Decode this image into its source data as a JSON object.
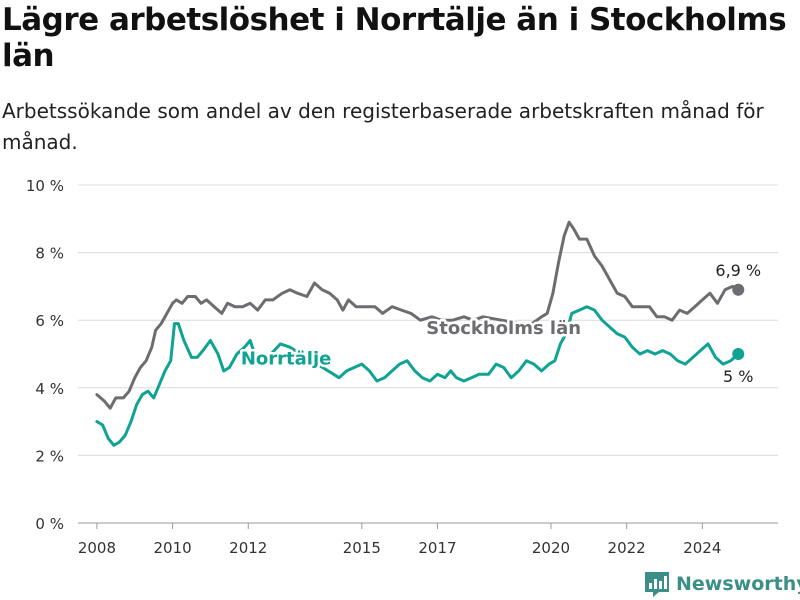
{
  "title": "Lägre arbetslöshet i Norrtälje än i Stockholms län",
  "subtitle": "Arbetssökande som andel av den registerbaserade arbetskraften månad för månad.",
  "brand": {
    "name": "Newsworthy",
    "color": "#3b8f86"
  },
  "chart_data": {
    "type": "line",
    "title": "Lägre arbetslöshet i Norrtälje än i Stockholms län",
    "subtitle": "Arbetssökande som andel av den registerbaserade arbetskraften månad för månad.",
    "xlabel": "",
    "ylabel": "",
    "xlim": [
      2007.5,
      2026.0
    ],
    "ylim": [
      0,
      10
    ],
    "y_ticks": [
      0,
      2,
      4,
      6,
      8,
      10
    ],
    "y_tick_labels": [
      "0 %",
      "2 %",
      "4 %",
      "6 %",
      "8 %",
      "10 %"
    ],
    "x_ticks": [
      2008,
      2010,
      2012,
      2015,
      2017,
      2020,
      2022,
      2024
    ],
    "x_tick_labels": [
      "2008",
      "2010",
      "2012",
      "2015",
      "2017",
      "2020",
      "2022",
      "2024"
    ],
    "grid": "horizontal",
    "series": [
      {
        "name": "Stockholms län",
        "color": "#6d6c70",
        "label_at": [
          2018.75,
          5.8
        ],
        "end_label": "6,9 %",
        "points": [
          [
            2008.0,
            3.8
          ],
          [
            2008.2,
            3.6
          ],
          [
            2008.35,
            3.4
          ],
          [
            2008.5,
            3.7
          ],
          [
            2008.7,
            3.7
          ],
          [
            2008.85,
            3.9
          ],
          [
            2009.0,
            4.3
          ],
          [
            2009.15,
            4.6
          ],
          [
            2009.3,
            4.8
          ],
          [
            2009.45,
            5.2
          ],
          [
            2009.55,
            5.7
          ],
          [
            2009.7,
            5.9
          ],
          [
            2009.85,
            6.2
          ],
          [
            2010.0,
            6.5
          ],
          [
            2010.1,
            6.6
          ],
          [
            2010.25,
            6.5
          ],
          [
            2010.4,
            6.7
          ],
          [
            2010.6,
            6.7
          ],
          [
            2010.75,
            6.5
          ],
          [
            2010.9,
            6.6
          ],
          [
            2011.1,
            6.4
          ],
          [
            2011.3,
            6.2
          ],
          [
            2011.45,
            6.5
          ],
          [
            2011.65,
            6.4
          ],
          [
            2011.85,
            6.4
          ],
          [
            2012.05,
            6.5
          ],
          [
            2012.25,
            6.3
          ],
          [
            2012.45,
            6.6
          ],
          [
            2012.65,
            6.6
          ],
          [
            2012.9,
            6.8
          ],
          [
            2013.1,
            6.9
          ],
          [
            2013.3,
            6.8
          ],
          [
            2013.55,
            6.7
          ],
          [
            2013.75,
            7.1
          ],
          [
            2013.95,
            6.9
          ],
          [
            2014.15,
            6.8
          ],
          [
            2014.35,
            6.6
          ],
          [
            2014.5,
            6.3
          ],
          [
            2014.65,
            6.6
          ],
          [
            2014.85,
            6.4
          ],
          [
            2015.1,
            6.4
          ],
          [
            2015.35,
            6.4
          ],
          [
            2015.55,
            6.2
          ],
          [
            2015.8,
            6.4
          ],
          [
            2016.05,
            6.3
          ],
          [
            2016.3,
            6.2
          ],
          [
            2016.55,
            6.0
          ],
          [
            2016.85,
            6.1
          ],
          [
            2017.1,
            6.0
          ],
          [
            2017.4,
            6.0
          ],
          [
            2017.7,
            6.1
          ],
          [
            2017.95,
            6.0
          ],
          [
            2018.2,
            6.1
          ],
          [
            2019.2,
            5.9
          ],
          [
            2019.5,
            5.9
          ],
          [
            2019.75,
            6.1
          ],
          [
            2019.9,
            6.2
          ],
          [
            2020.05,
            6.8
          ],
          [
            2020.2,
            7.7
          ],
          [
            2020.35,
            8.5
          ],
          [
            2020.48,
            8.9
          ],
          [
            2020.6,
            8.7
          ],
          [
            2020.75,
            8.4
          ],
          [
            2020.95,
            8.4
          ],
          [
            2021.15,
            7.9
          ],
          [
            2021.35,
            7.6
          ],
          [
            2021.55,
            7.2
          ],
          [
            2021.75,
            6.8
          ],
          [
            2021.95,
            6.7
          ],
          [
            2022.15,
            6.4
          ],
          [
            2022.35,
            6.4
          ],
          [
            2022.6,
            6.4
          ],
          [
            2022.8,
            6.1
          ],
          [
            2023.0,
            6.1
          ],
          [
            2023.2,
            6.0
          ],
          [
            2023.4,
            6.3
          ],
          [
            2023.6,
            6.2
          ],
          [
            2023.8,
            6.4
          ],
          [
            2024.0,
            6.6
          ],
          [
            2024.2,
            6.8
          ],
          [
            2024.4,
            6.5
          ],
          [
            2024.6,
            6.9
          ],
          [
            2024.8,
            7.0
          ],
          [
            2024.95,
            6.9
          ]
        ]
      },
      {
        "name": "Norrtälje",
        "color": "#0fa394",
        "label_at": [
          2013.0,
          4.9
        ],
        "end_label": "5 %",
        "points": [
          [
            2008.0,
            3.0
          ],
          [
            2008.15,
            2.9
          ],
          [
            2008.3,
            2.5
          ],
          [
            2008.45,
            2.3
          ],
          [
            2008.6,
            2.4
          ],
          [
            2008.75,
            2.6
          ],
          [
            2008.9,
            3.0
          ],
          [
            2009.05,
            3.5
          ],
          [
            2009.2,
            3.8
          ],
          [
            2009.35,
            3.9
          ],
          [
            2009.5,
            3.7
          ],
          [
            2009.65,
            4.1
          ],
          [
            2009.8,
            4.5
          ],
          [
            2009.95,
            4.8
          ],
          [
            2010.05,
            5.9
          ],
          [
            2010.15,
            5.9
          ],
          [
            2010.3,
            5.4
          ],
          [
            2010.5,
            4.9
          ],
          [
            2010.65,
            4.9
          ],
          [
            2010.8,
            5.1
          ],
          [
            2011.0,
            5.4
          ],
          [
            2011.2,
            5.0
          ],
          [
            2011.35,
            4.5
          ],
          [
            2011.5,
            4.6
          ],
          [
            2011.7,
            5.0
          ],
          [
            2011.9,
            5.2
          ],
          [
            2012.05,
            5.4
          ],
          [
            2012.2,
            4.9
          ],
          [
            2012.4,
            4.8
          ],
          [
            2012.6,
            5.0
          ],
          [
            2012.85,
            5.3
          ],
          [
            2013.1,
            5.2
          ],
          [
            2014.4,
            4.3
          ],
          [
            2014.6,
            4.5
          ],
          [
            2014.8,
            4.6
          ],
          [
            2015.0,
            4.7
          ],
          [
            2015.2,
            4.5
          ],
          [
            2015.4,
            4.2
          ],
          [
            2015.6,
            4.3
          ],
          [
            2015.8,
            4.5
          ],
          [
            2016.0,
            4.7
          ],
          [
            2016.2,
            4.8
          ],
          [
            2016.4,
            4.5
          ],
          [
            2016.6,
            4.3
          ],
          [
            2016.8,
            4.2
          ],
          [
            2017.0,
            4.4
          ],
          [
            2017.2,
            4.3
          ],
          [
            2017.35,
            4.5
          ],
          [
            2017.5,
            4.3
          ],
          [
            2017.7,
            4.2
          ],
          [
            2017.9,
            4.3
          ],
          [
            2018.1,
            4.4
          ],
          [
            2018.35,
            4.4
          ],
          [
            2018.55,
            4.7
          ],
          [
            2018.75,
            4.6
          ],
          [
            2018.95,
            4.3
          ],
          [
            2019.15,
            4.5
          ],
          [
            2019.35,
            4.8
          ],
          [
            2019.55,
            4.7
          ],
          [
            2019.75,
            4.5
          ],
          [
            2019.95,
            4.7
          ],
          [
            2020.1,
            4.8
          ],
          [
            2020.25,
            5.3
          ],
          [
            2020.4,
            5.6
          ],
          [
            2020.55,
            6.2
          ],
          [
            2020.75,
            6.3
          ],
          [
            2020.95,
            6.4
          ],
          [
            2021.15,
            6.3
          ],
          [
            2021.35,
            6.0
          ],
          [
            2021.55,
            5.8
          ],
          [
            2021.75,
            5.6
          ],
          [
            2021.95,
            5.5
          ],
          [
            2022.15,
            5.2
          ],
          [
            2022.35,
            5.0
          ],
          [
            2022.55,
            5.1
          ],
          [
            2022.75,
            5.0
          ],
          [
            2022.95,
            5.1
          ],
          [
            2023.15,
            5.0
          ],
          [
            2023.35,
            4.8
          ],
          [
            2023.55,
            4.7
          ],
          [
            2023.75,
            4.9
          ],
          [
            2023.95,
            5.1
          ],
          [
            2024.15,
            5.3
          ],
          [
            2024.35,
            4.9
          ],
          [
            2024.55,
            4.7
          ],
          [
            2024.75,
            4.8
          ],
          [
            2024.95,
            5.0
          ]
        ]
      }
    ]
  }
}
